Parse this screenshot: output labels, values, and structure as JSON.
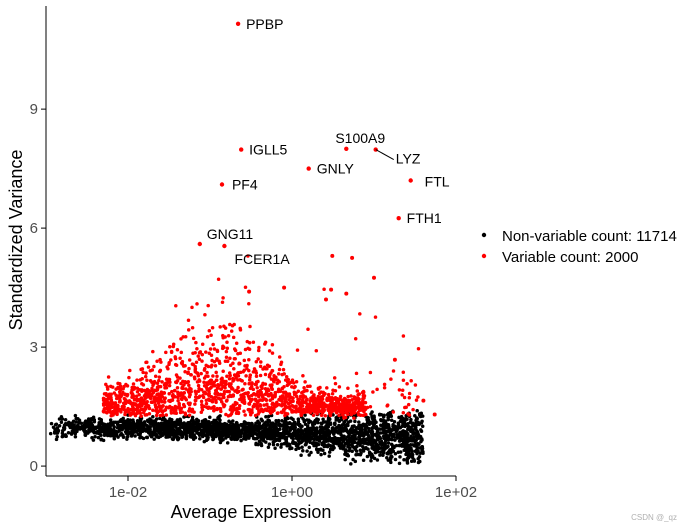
{
  "chart_data": {
    "type": "scatter",
    "title": "",
    "xlabel": "Average Expression",
    "ylabel": "Standardized Variance",
    "x_scale": "log10",
    "xlim": [
      0.001,
      100
    ],
    "ylim": [
      -0.25,
      11.6
    ],
    "x_ticks": [
      {
        "value": 0.01,
        "label": "1e-02"
      },
      {
        "value": 1,
        "label": "1e+00"
      },
      {
        "value": 100,
        "label": "1e+02"
      }
    ],
    "y_ticks": [
      {
        "value": 0,
        "label": "0"
      },
      {
        "value": 3,
        "label": "3"
      },
      {
        "value": 6,
        "label": "6"
      },
      {
        "value": 9,
        "label": "9"
      }
    ],
    "grid": false,
    "legend_position": "right",
    "series": [
      {
        "name": "Non-variable count: 11714",
        "color": "#000000"
      },
      {
        "name": "Variable count: 2000",
        "color": "#ff0000"
      }
    ],
    "labeled_points": [
      {
        "label": "PPBP",
        "x": 0.22,
        "y": 11.15
      },
      {
        "label": "IGLL5",
        "x": 0.24,
        "y": 7.98
      },
      {
        "label": "PF4",
        "x": 0.14,
        "y": 7.1
      },
      {
        "label": "GNLY",
        "x": 1.6,
        "y": 7.5
      },
      {
        "label": "S100A9",
        "x": 4.6,
        "y": 8.0
      },
      {
        "label": "LYZ",
        "x": 10.5,
        "y": 7.98
      },
      {
        "label": "FTL",
        "x": 28,
        "y": 7.2
      },
      {
        "label": "FTH1",
        "x": 20,
        "y": 6.25
      },
      {
        "label": "GNG11",
        "x": 0.075,
        "y": 5.6
      },
      {
        "label": "FCER1A",
        "x": 0.15,
        "y": 5.55
      }
    ],
    "extra_variable_points": [
      {
        "x": 3.1,
        "y": 5.3
      },
      {
        "x": 5.4,
        "y": 5.25
      },
      {
        "x": 10,
        "y": 4.75
      },
      {
        "x": 0.8,
        "y": 4.5
      },
      {
        "x": 0.3,
        "y": 4.4
      },
      {
        "x": 3,
        "y": 4.45
      },
      {
        "x": 4.6,
        "y": 4.35
      },
      {
        "x": 2.6,
        "y": 4.2
      },
      {
        "x": 18,
        "y": 2.68
      },
      {
        "x": 40,
        "y": 1.65
      },
      {
        "x": 55,
        "y": 1.3
      }
    ]
  },
  "watermark": "CSDN @_qz"
}
